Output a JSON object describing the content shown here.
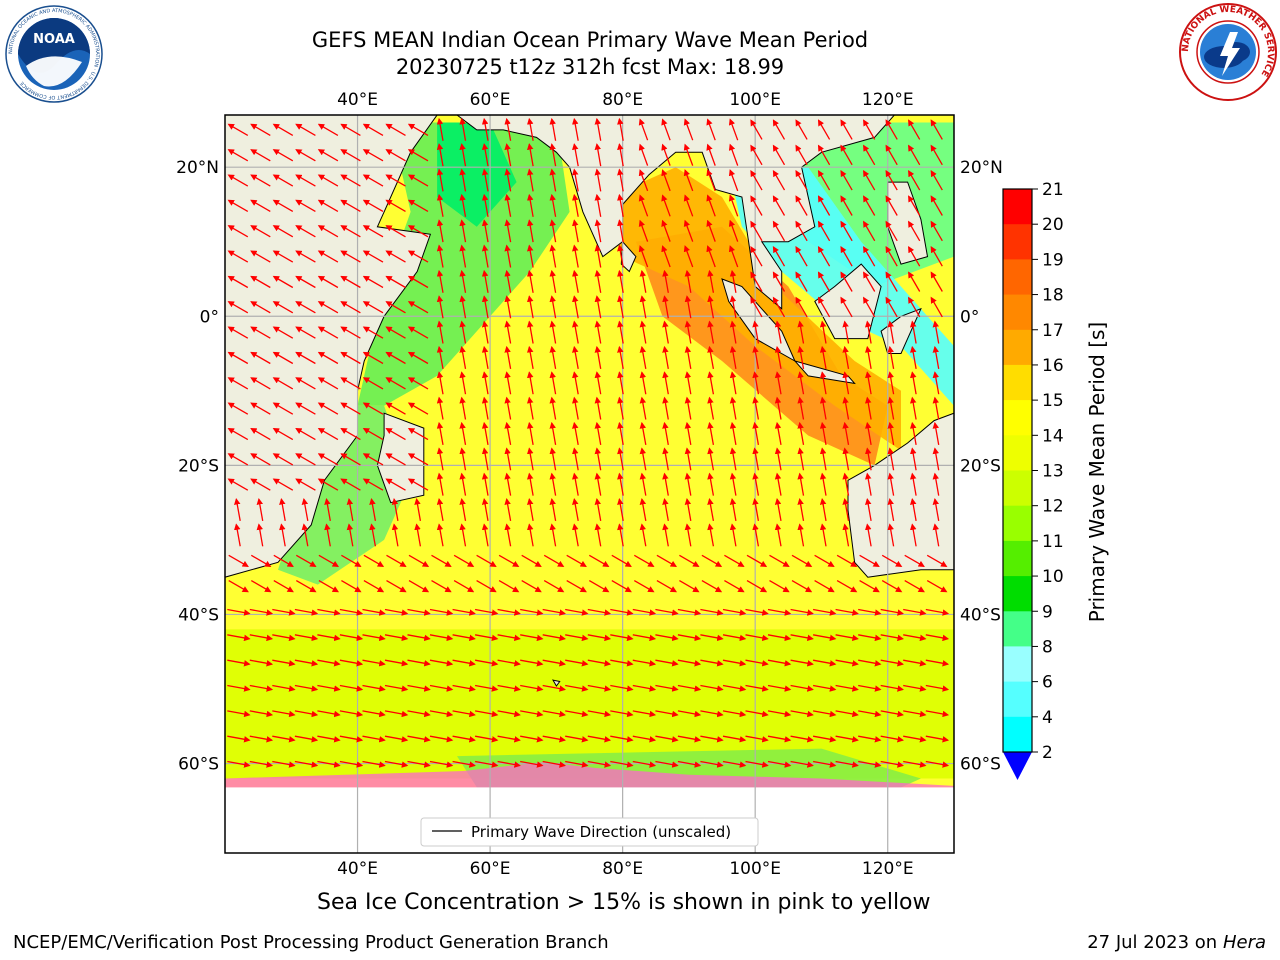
{
  "title_line1": "GEFS MEAN Indian Ocean Primary Wave Mean Period",
  "title_line2": "20230725 t12z 312h fcst   Max: 18.99",
  "lon_ticks": [
    "40°E",
    "60°E",
    "80°E",
    "100°E",
    "120°E"
  ],
  "lat_ticks": [
    "20°N",
    "0°",
    "20°S",
    "40°S",
    "60°S"
  ],
  "lon_values": [
    40,
    60,
    80,
    100,
    120
  ],
  "lat_values": [
    20,
    0,
    -20,
    -40,
    -60
  ],
  "map_extent": {
    "lon": [
      20,
      130
    ],
    "lat": [
      -72,
      27
    ]
  },
  "legend_label": "Primary Wave Direction (unscaled)",
  "colorbar": {
    "label": "Primary Wave Mean Period [s]",
    "ticks": [
      "21",
      "20",
      "19",
      "18",
      "17",
      "16",
      "15",
      "14",
      "13",
      "12",
      "11",
      "10",
      "9",
      "8",
      "6",
      "4",
      "2"
    ],
    "colors": [
      "#ff0000",
      "#ff3300",
      "#ff6600",
      "#ff8800",
      "#ffaa00",
      "#ffdd00",
      "#ffff00",
      "#eeff00",
      "#ccff00",
      "#99ff00",
      "#55ee00",
      "#00dd00",
      "#44ff88",
      "#99ffff",
      "#55ffff",
      "#00ffff",
      "#00bbff",
      "#0066ff"
    ],
    "extend_color": "#0000ff"
  },
  "colors": {
    "land": "#efefdf",
    "ice_pink": "#ff66cc",
    "arrow": "#ff0000",
    "grid": "#b0b0b0"
  },
  "note": "Sea Ice Concentration > 15% is shown in pink to yellow",
  "footer_left": "NCEP/EMC/Verification Post Processing Product Generation Branch",
  "footer_right_date": "27 Jul 2023 on ",
  "footer_right_host": "Hera",
  "logos": {
    "noaa": {
      "text": "NOAA",
      "ring": "NATIONAL OCEANIC AND ATMOSPHERIC ADMINISTRATION · U.S. DEPARTMENT OF COMMERCE"
    },
    "nws": {
      "ring": "NATIONAL WEATHER SERVICE"
    }
  }
}
